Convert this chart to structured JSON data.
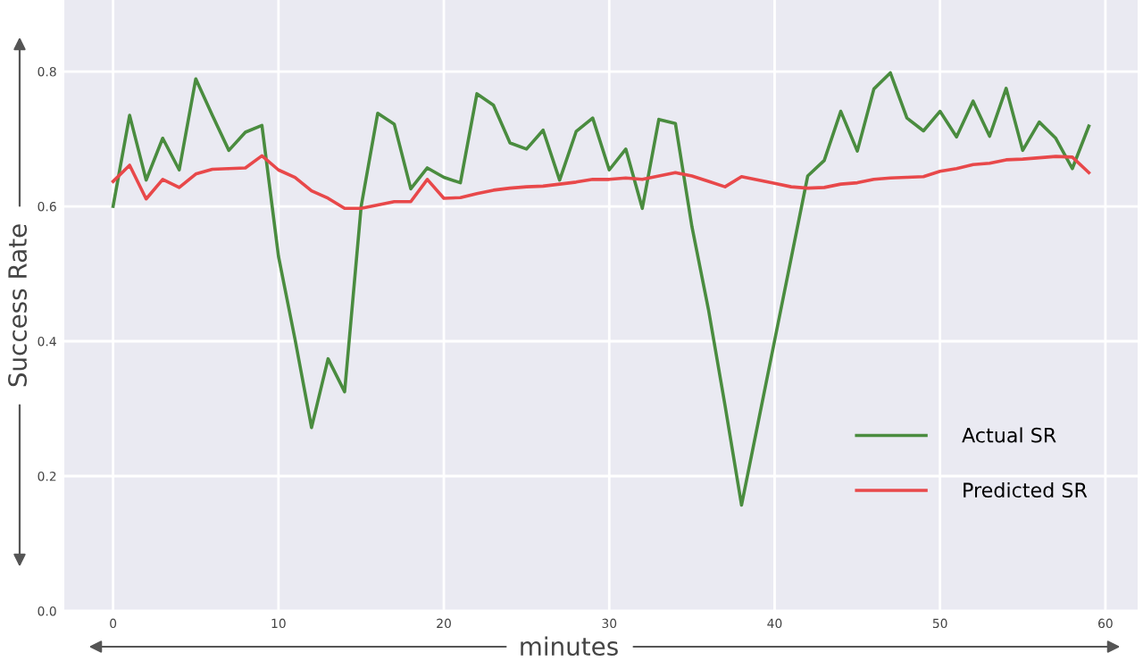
{
  "chart_data": {
    "type": "line",
    "xlabel": "minutes",
    "ylabel": "Success Rate",
    "x": [
      0,
      1,
      2,
      3,
      4,
      5,
      6,
      7,
      8,
      9,
      10,
      11,
      12,
      13,
      14,
      15,
      16,
      17,
      18,
      19,
      20,
      21,
      22,
      23,
      24,
      25,
      26,
      27,
      28,
      29,
      30,
      31,
      32,
      33,
      34,
      35,
      36,
      37,
      38,
      39,
      40,
      41,
      42,
      43,
      44,
      45,
      46,
      47,
      48,
      49,
      50,
      51,
      52,
      53,
      54,
      55,
      56,
      57,
      58,
      59
    ],
    "series": [
      {
        "name": "Actual SR",
        "color": "#4a8c3f",
        "values": [
          0.6,
          0.735,
          0.639,
          0.701,
          0.654,
          0.789,
          0.735,
          0.683,
          0.71,
          0.72,
          0.526,
          0.403,
          0.272,
          0.374,
          0.325,
          0.6,
          0.738,
          0.722,
          0.626,
          0.657,
          0.643,
          0.635,
          0.767,
          0.75,
          0.694,
          0.685,
          0.713,
          0.639,
          0.711,
          0.731,
          0.654,
          0.685,
          0.597,
          0.729,
          0.723,
          0.57,
          0.447,
          0.305,
          0.157,
          0.279,
          0.401,
          0.523,
          0.645,
          0.668,
          0.741,
          0.682,
          0.774,
          0.798,
          0.731,
          0.712,
          0.741,
          0.703,
          0.756,
          0.704,
          0.775,
          0.683,
          0.725,
          0.701,
          0.656,
          0.719
        ]
      },
      {
        "name": "Predicted SR",
        "color": "#e8484a",
        "values": [
          0.637,
          0.661,
          0.611,
          0.64,
          0.628,
          0.648,
          0.655,
          0.656,
          0.657,
          0.675,
          0.654,
          0.643,
          0.623,
          0.612,
          0.597,
          0.597,
          0.602,
          0.607,
          0.607,
          0.64,
          0.612,
          0.613,
          0.619,
          0.624,
          0.627,
          0.629,
          0.63,
          0.633,
          0.636,
          0.64,
          0.64,
          0.642,
          0.64,
          0.645,
          0.65,
          0.645,
          0.637,
          0.629,
          0.644,
          0.639,
          0.634,
          0.629,
          0.627,
          0.628,
          0.633,
          0.635,
          0.64,
          0.642,
          0.643,
          0.644,
          0.652,
          0.656,
          0.662,
          0.664,
          0.669,
          0.67,
          0.672,
          0.674,
          0.673,
          0.65
        ]
      }
    ],
    "xlim": [
      -2.95,
      61.95
    ],
    "xticks": [
      0,
      10,
      20,
      30,
      40,
      50,
      60
    ],
    "ylim": [
      0,
      0.906
    ],
    "yticks": [
      {
        "value": 0,
        "label": "0.0"
      },
      {
        "value": 0.2,
        "label": "0.2"
      },
      {
        "value": 0.4,
        "label": "0.4"
      },
      {
        "value": 0.6,
        "label": "0.6"
      },
      {
        "value": 0.8,
        "label": "0.8"
      }
    ],
    "grid": true,
    "legend": "lower right",
    "marker": "none",
    "line_style": "solid"
  }
}
